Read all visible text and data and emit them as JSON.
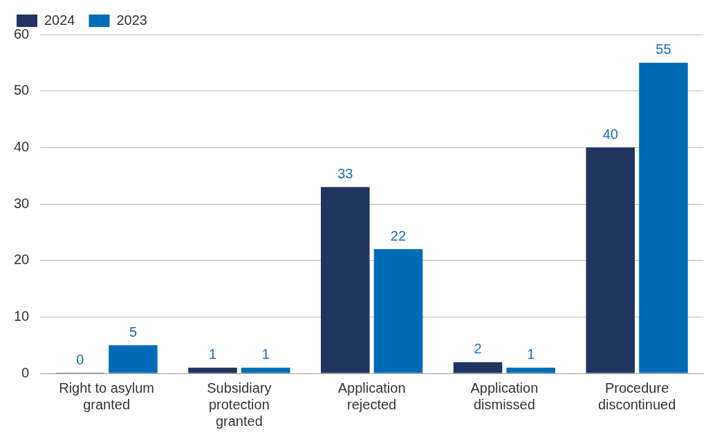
{
  "chart_data": {
    "type": "bar",
    "categories": [
      "Right to asylum granted",
      "Subsidiary protection granted",
      "Application rejected",
      "Application dismissed",
      "Procedure discontinued"
    ],
    "series": [
      {
        "name": "2024",
        "color": "#1f3560",
        "values": [
          0,
          1,
          33,
          2,
          40
        ]
      },
      {
        "name": "2023",
        "color": "#006bb5",
        "values": [
          5,
          1,
          22,
          1,
          55
        ]
      }
    ],
    "ylim": [
      0,
      60
    ],
    "yticks": [
      0,
      10,
      20,
      30,
      40,
      50,
      60
    ],
    "grid": "y",
    "legend": "top left",
    "data_labels": true
  }
}
